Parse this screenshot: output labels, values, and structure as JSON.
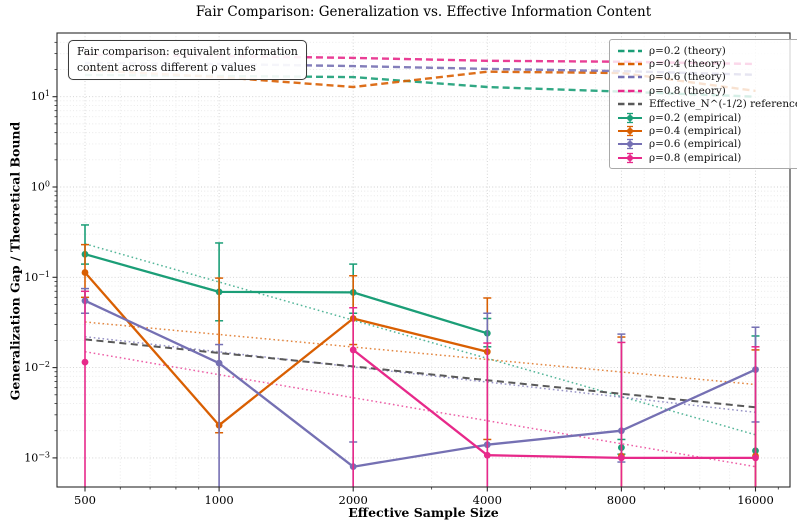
{
  "figure": {
    "title": "Fair Comparison: Generalization vs. Effective Information Content",
    "xlabel": "Effective Sample Size",
    "ylabel": "Generalization Gap / Theoretical Bound",
    "annotation": {
      "line1": "Fair comparison: equivalent information",
      "line2": "content across different ρ values"
    }
  },
  "chart_data": {
    "type": "line",
    "x_scale": "log2",
    "y_scale": "log10",
    "grid": true,
    "legend_position": "upper right",
    "x": [
      500,
      1000,
      2000,
      4000,
      8000,
      16000
    ],
    "x_tick_labels": [
      "500",
      "1000",
      "2000",
      "4000",
      "8000",
      "16000"
    ],
    "y_tick_exponents": [
      1,
      0,
      -1,
      -2,
      -3
    ],
    "ylim": [
      0.00048,
      47
    ],
    "xlim": [
      435,
      19000
    ],
    "colors": {
      "rho02": "#1b9e77",
      "rho04": "#d95f02",
      "rho06": "#7570b3",
      "rho08": "#e7298a",
      "reference": "#595959",
      "grid": "#c4c4c4",
      "spine": "#2b2b2b"
    },
    "theory_series": [
      {
        "label": "ρ=0.2 (theory)",
        "key": "rho02",
        "values": [
          17.4,
          17.0,
          16.5,
          12.8,
          11.4,
          10.0
        ]
      },
      {
        "label": "ρ=0.4 (theory)",
        "key": "rho04",
        "values": [
          19.8,
          16.5,
          12.8,
          18.9,
          18.3,
          11.6
        ]
      },
      {
        "label": "ρ=0.6 (theory)",
        "key": "rho06",
        "values": [
          23.6,
          23.0,
          21.8,
          20.3,
          19.2,
          17.5
        ]
      },
      {
        "label": "ρ=0.8 (theory)",
        "key": "rho08",
        "values": [
          29.0,
          28.2,
          26.9,
          25.0,
          24.4,
          23.0
        ]
      }
    ],
    "reference_series": {
      "label": "Effective_N^(-1/2) reference",
      "key": "reference",
      "values": [
        0.0205,
        0.0145,
        0.0103,
        0.00725,
        0.00513,
        0.00363
      ]
    },
    "trend_lines": [
      {
        "key": "rho02",
        "start": 0.235,
        "end": 0.0018
      },
      {
        "key": "rho04",
        "start": 0.032,
        "end": 0.0065
      },
      {
        "key": "rho06",
        "start": 0.022,
        "end": 0.0032
      },
      {
        "key": "rho08",
        "start": 0.015,
        "end": 0.0008
      }
    ],
    "empirical_series": [
      {
        "label": "ρ=0.2 (empirical)",
        "key": "rho02",
        "values": [
          0.18,
          0.069,
          0.068,
          0.024,
          0.0013,
          0.0012
        ],
        "err_lo": [
          0.14,
          0.033,
          0.04,
          0.017,
          0.0011,
          0.00048
        ],
        "err_hi": [
          0.38,
          0.24,
          0.14,
          0.035,
          0.0016,
          0.0224
        ],
        "segments": [
          [
            0,
            3
          ]
        ]
      },
      {
        "label": "ρ=0.4 (empirical)",
        "key": "rho04",
        "values": [
          0.113,
          0.0023,
          0.035,
          0.015,
          0.00105,
          0.00105
        ],
        "err_lo": [
          0.06,
          0.0019,
          0.018,
          0.0016,
          0.00048,
          0.00048
        ],
        "err_hi": [
          0.23,
          0.098,
          0.104,
          0.059,
          0.0218,
          0.0157
        ],
        "segments": [
          [
            0,
            3
          ]
        ]
      },
      {
        "label": "ρ=0.6 (empirical)",
        "key": "rho06",
        "values": [
          0.055,
          0.0112,
          0.0008,
          0.0014,
          0.002,
          0.0095
        ],
        "err_lo": [
          0.04,
          0.00048,
          0.00048,
          0.00048,
          0.0009,
          0.0025
        ],
        "err_hi": [
          0.075,
          0.018,
          0.0015,
          0.04,
          0.0235,
          0.028
        ],
        "segments": [
          [
            0,
            5
          ]
        ]
      },
      {
        "label": "ρ=0.8 (empirical)",
        "key": "rho08",
        "values": [
          0.0115,
          null,
          0.0157,
          0.00107,
          0.001,
          0.001
        ],
        "err_lo": [
          0.00048,
          null,
          0.00048,
          0.00048,
          0.00048,
          0.00048
        ],
        "err_hi": [
          0.07,
          null,
          0.046,
          0.0187,
          0.019,
          0.017
        ],
        "segments": [
          [
            2,
            5
          ]
        ]
      }
    ],
    "legend": [
      {
        "label": "ρ=0.2 (theory)",
        "key": "rho02",
        "style": "dashed"
      },
      {
        "label": "ρ=0.4 (theory)",
        "key": "rho04",
        "style": "dashed"
      },
      {
        "label": "ρ=0.6 (theory)",
        "key": "rho06",
        "style": "dashed"
      },
      {
        "label": "ρ=0.8 (theory)",
        "key": "rho08",
        "style": "dashed"
      },
      {
        "label": "Effective_N^(-1/2) reference",
        "key": "reference",
        "style": "dashed"
      },
      {
        "label": "ρ=0.2 (empirical)",
        "key": "rho02",
        "style": "errorbar"
      },
      {
        "label": "ρ=0.4 (empirical)",
        "key": "rho04",
        "style": "errorbar"
      },
      {
        "label": "ρ=0.6 (empirical)",
        "key": "rho06",
        "style": "errorbar"
      },
      {
        "label": "ρ=0.8 (empirical)",
        "key": "rho08",
        "style": "errorbar"
      }
    ]
  }
}
